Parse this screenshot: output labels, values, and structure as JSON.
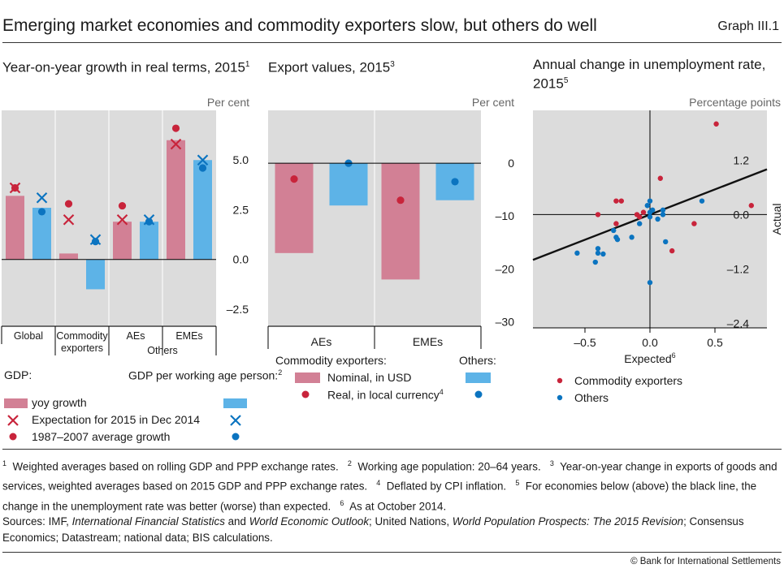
{
  "header": {
    "title": "Emerging market economies and commodity exporters slow, but others do well",
    "graph_no": "Graph III.1"
  },
  "colors": {
    "pink_bar": "#d28095",
    "red_marker": "#c8243b",
    "blue_bar": "#5db3e7",
    "blue_marker": "#0b74c0",
    "panel_bg": "#dcdcdc"
  },
  "panels": {
    "left": {
      "title": "Year-on-year growth in real terms, 2015",
      "title_sup": "1",
      "unit": "Per cent"
    },
    "middle": {
      "title": "Export values, 2015",
      "title_sup": "3",
      "unit": "Per cent"
    },
    "right": {
      "title": "Annual change in unemployment rate, 2015",
      "title_sup": "5",
      "unit": "Percentage points",
      "xlabel": "Expected",
      "xlabel_sup": "6",
      "ylabel": "Actual"
    }
  },
  "legend_left": {
    "gdp": "GDP:",
    "gdp_pwap": "GDP per working age person:",
    "gdp_pwap_sup": "2",
    "yoy": "yoy growth",
    "expectation": "Expectation for 2015 in Dec 2014",
    "average": "1987–2007 average growth"
  },
  "legend_middle": {
    "commodity": "Commodity exporters:",
    "others": "Others:",
    "nominal": "Nominal, in USD",
    "real": "Real, in local currency",
    "real_sup": "4"
  },
  "legend_right": {
    "commodity": "Commodity exporters",
    "others": "Others"
  },
  "footnotes": {
    "f1": "Weighted averages based on rolling GDP and PPP exchange rates.",
    "f2": "Working age population: 20–64 years.",
    "f3": "Year-on-year change in exports of goods and services, weighted averages based on 2015 GDP and PPP exchange rates.",
    "f4": "Deflated by CPI inflation.",
    "f5": "For economies below (above) the black line, the change in the unemployment rate was better (worse) than expected.",
    "f6": "As at October 2014."
  },
  "sources": {
    "p1": "Sources: IMF, ",
    "i1": "International Financial Statistics",
    "p2": " and ",
    "i2": "World Economic Outlook",
    "p3": "; United Nations, ",
    "i3": "World Population Prospects: The 2015 Revision",
    "p4": "; Consensus Economics; Datastream; national data; BIS calculations."
  },
  "copyright": "© Bank for International Settlements",
  "chart_data": [
    {
      "type": "bar",
      "categories": [
        "Global",
        "Commodity exporters",
        "AEs",
        "EMEs"
      ],
      "category_lines": [
        [
          "Global"
        ],
        [
          "Commodity",
          "exporters"
        ],
        [
          "AEs"
        ],
        [
          "EMEs"
        ]
      ],
      "group_label": "Others",
      "y_ticks": [
        5.0,
        2.5,
        0.0,
        -2.5
      ],
      "y_tick_labels": [
        "5.0",
        "2.5",
        "0.0",
        "–2.5"
      ],
      "ylim": [
        -3.4,
        7.5
      ],
      "series": [
        {
          "name": "GDP: yoy growth",
          "kind": "bar",
          "color": "#d28095",
          "values": [
            3.2,
            0.3,
            1.9,
            6.0
          ]
        },
        {
          "name": "GDP: Expectation for 2015 in Dec 2014",
          "kind": "cross",
          "color": "#c8243b",
          "values": [
            3.6,
            2.0,
            2.0,
            5.8
          ]
        },
        {
          "name": "GDP: 1987–2007 average growth",
          "kind": "dot",
          "color": "#c8243b",
          "values": [
            3.6,
            2.8,
            2.7,
            6.6
          ]
        },
        {
          "name": "GDP per working age person: yoy growth",
          "kind": "bar",
          "color": "#5db3e7",
          "values": [
            2.6,
            -1.5,
            1.9,
            5.0
          ]
        },
        {
          "name": "GDP per working age person: Expectation for 2015 in Dec 2014",
          "kind": "cross",
          "color": "#0b74c0",
          "values": [
            3.1,
            1.0,
            2.0,
            5.0
          ]
        },
        {
          "name": "GDP per working age person: 1987–2007 average growth",
          "kind": "dot",
          "color": "#0b74c0",
          "values": [
            2.4,
            0.9,
            1.9,
            4.6
          ]
        }
      ]
    },
    {
      "type": "bar",
      "categories": [
        "AEs",
        "EMEs"
      ],
      "y_ticks": [
        0,
        -10,
        -20,
        -30
      ],
      "y_tick_labels": [
        "0",
        "–10",
        "–20",
        "–30"
      ],
      "ylim": [
        -31,
        10
      ],
      "series": [
        {
          "name": "Commodity exporters: Nominal, in USD",
          "kind": "bar",
          "color": "#d28095",
          "values": [
            -17,
            -22
          ]
        },
        {
          "name": "Commodity exporters: Real, in local currency",
          "kind": "dot",
          "color": "#c8243b",
          "values": [
            -3,
            -7
          ]
        },
        {
          "name": "Others: Nominal, in USD",
          "kind": "bar",
          "color": "#5db3e7",
          "values": [
            -8,
            -7
          ]
        },
        {
          "name": "Others: Real, in local currency",
          "kind": "dot",
          "color": "#0b74c0",
          "values": [
            0,
            -3.5
          ]
        }
      ]
    },
    {
      "type": "scatter",
      "xlabel": "Expected",
      "ylabel": "Actual",
      "x_ticks": [
        -0.5,
        0.0,
        0.5
      ],
      "x_tick_labels": [
        "–0.5",
        "0.0",
        "0.5"
      ],
      "y_ticks": [
        1.2,
        0.0,
        -1.2,
        -2.4
      ],
      "y_tick_labels": [
        "1.2",
        "0.0",
        "–1.2",
        "–2.4"
      ],
      "xlim": [
        -0.9,
        0.9
      ],
      "ylim": [
        -2.5,
        2.3
      ],
      "regression_line": {
        "x": [
          -0.9,
          0.9
        ],
        "y": [
          -1.0,
          1.0
        ]
      },
      "series": [
        {
          "name": "Commodity exporters",
          "color": "#c8243b",
          "points": [
            [
              -0.4,
              0.0
            ],
            [
              -0.26,
              0.3
            ],
            [
              -0.22,
              0.3
            ],
            [
              -0.26,
              -0.2
            ],
            [
              -0.1,
              0.0
            ],
            [
              -0.08,
              -0.05
            ],
            [
              0.08,
              0.8
            ],
            [
              0.17,
              -0.8
            ],
            [
              0.34,
              -0.2
            ],
            [
              0.51,
              2.0
            ],
            [
              0.78,
              0.2
            ],
            [
              -0.05,
              0.05
            ]
          ]
        },
        {
          "name": "Others",
          "color": "#0b74c0",
          "points": [
            [
              -0.56,
              -0.85
            ],
            [
              -0.4,
              -0.75
            ],
            [
              -0.4,
              -0.85
            ],
            [
              -0.36,
              -0.87
            ],
            [
              -0.42,
              -1.05
            ],
            [
              -0.26,
              -0.5
            ],
            [
              -0.25,
              -0.55
            ],
            [
              -0.28,
              -0.35
            ],
            [
              -0.14,
              -0.5
            ],
            [
              -0.08,
              -0.2
            ],
            [
              0.0,
              0.3
            ],
            [
              0.0,
              0.05
            ],
            [
              0.0,
              -0.05
            ],
            [
              0.02,
              0.1
            ],
            [
              0.06,
              -0.1
            ],
            [
              0.1,
              0.0
            ],
            [
              0.1,
              0.1
            ],
            [
              0.12,
              -0.6
            ],
            [
              0.0,
              -1.5
            ],
            [
              0.4,
              0.3
            ],
            [
              -0.02,
              0.2
            ]
          ]
        }
      ]
    }
  ]
}
